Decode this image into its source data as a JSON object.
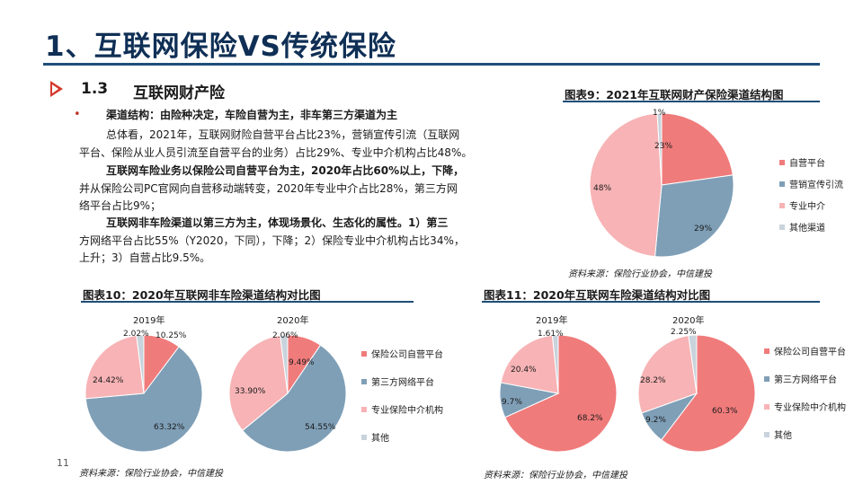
{
  "title": "1、互联网保险VS传统保险",
  "section": {
    "number": "1.3",
    "name": "互联网财产险"
  },
  "page_number": "11",
  "body": {
    "heading": "渠道结构：由险种决定，车险自营为主，非车第三方渠道为主",
    "lines": [
      "总体看，2021年，互联网财险自营平台占比23%，营销宣传引流（互联网",
      "平台、保险从业人员引流至自营平台的业务）占比29%、专业中介机构占比48%。",
      "互联网车险业务以保险公司自营平台为主，2020年占比60%以上，下降，",
      "并从保险公司PC官网向自营移动端转变，2020年专业中介占比28%，第三方网",
      "络平台占比9%；",
      "互联网非车险渠道以第三方为主，体现场景化、生态化的属性。1）第三",
      "方网络平台占比55%（Y2020，下同），下降；2）保险专业中介机构占比34%，",
      "上升；3）自营占比9.5%。"
    ]
  },
  "colors": {
    "red": "#f07b7b",
    "blue": "#7f9fb7",
    "pink": "#f7b3b5",
    "gray": "#c9d3dc",
    "navy": "#1f4e79",
    "arrow": "#d5392e"
  },
  "chart9": {
    "title": "图表9：2021年互联网财产保险渠道结构图",
    "source": "资料来源：保险行业协会，中信建投",
    "labels": [
      "23%",
      "29%",
      "48%",
      "1%"
    ],
    "legend": [
      "自营平台",
      "营销宣传引流",
      "专业中介",
      "其他渠道"
    ]
  },
  "chart10": {
    "title": "图表10：2020年互联网非车险渠道结构对比图",
    "source": "资料来源：保险行业协会，中信建投",
    "year_a": "2019年",
    "year_b": "2020年",
    "labels_a": [
      "10.25%",
      "63.32%",
      "24.42%",
      "2.02%"
    ],
    "labels_b": [
      "9.49%",
      "54.55%",
      "33.90%",
      "2.06%"
    ],
    "legend": [
      "保险公司自营平台",
      "第三方网络平台",
      "专业保险中介机构",
      "其他"
    ]
  },
  "chart11": {
    "title": "图表11：2020年互联网车险渠道结构对比图",
    "source": "资料来源：保险行业协会，中信建投",
    "year_a": "2019年",
    "year_b": "2020年",
    "labels_a": [
      "68.2%",
      "9.7%",
      "20.4%",
      "1.61%"
    ],
    "labels_b": [
      "60.3%",
      "9.2%",
      "28.2%",
      "2.25%"
    ],
    "legend": [
      "保险公司自营平台",
      "第三方网络平台",
      "专业保险中介机构",
      "其他"
    ]
  },
  "chart_data": [
    {
      "type": "pie",
      "title": "图表9：2021年互联网财产保险渠道结构图",
      "categories": [
        "自营平台",
        "营销宣传引流",
        "专业中介",
        "其他渠道"
      ],
      "values": [
        23,
        29,
        48,
        1
      ]
    },
    {
      "type": "pie",
      "title": "图表10：2020年互联网非车险渠道结构对比图",
      "categories": [
        "保险公司自营平台",
        "第三方网络平台",
        "专业保险中介机构",
        "其他"
      ],
      "series": [
        {
          "name": "2019年",
          "values": [
            10.25,
            63.32,
            24.42,
            2.02
          ]
        },
        {
          "name": "2020年",
          "values": [
            9.49,
            54.55,
            33.9,
            2.06
          ]
        }
      ]
    },
    {
      "type": "pie",
      "title": "图表11：2020年互联网车险渠道结构对比图",
      "categories": [
        "保险公司自营平台",
        "第三方网络平台",
        "专业保险中介机构",
        "其他"
      ],
      "series": [
        {
          "name": "2019年",
          "values": [
            68.2,
            9.7,
            20.4,
            1.61
          ]
        },
        {
          "name": "2020年",
          "values": [
            60.3,
            9.2,
            28.2,
            2.25
          ]
        }
      ]
    }
  ]
}
